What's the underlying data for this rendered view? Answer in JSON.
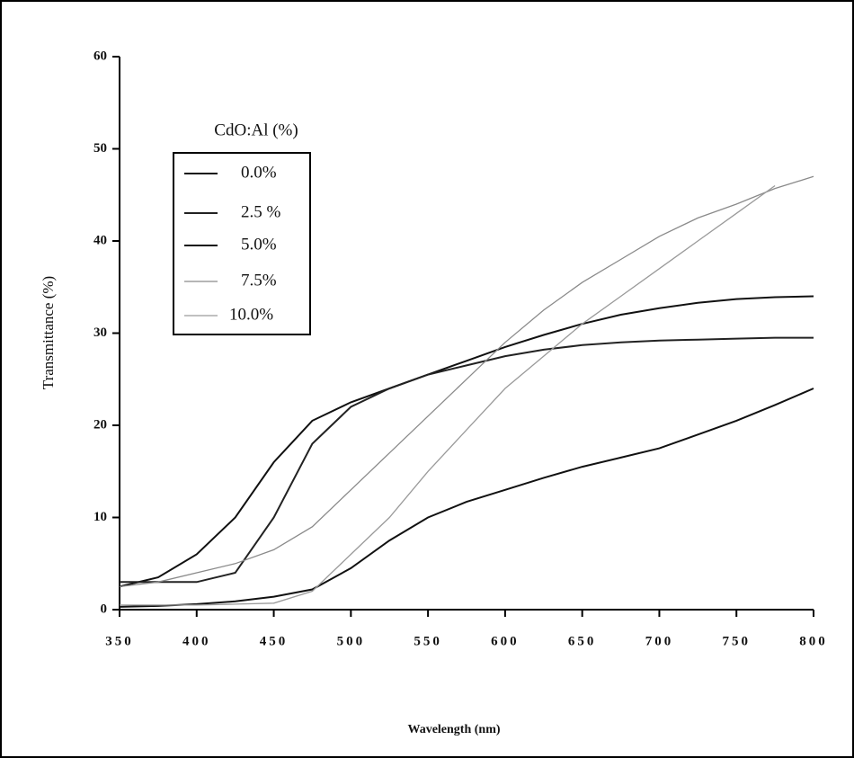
{
  "chart_data": {
    "type": "line",
    "x_label": "Wavelength (nm)",
    "y_label": "Transmittance (%)",
    "legend_title": "CdO:Al (%)",
    "x": [
      350,
      375,
      400,
      425,
      450,
      475,
      500,
      525,
      550,
      575,
      600,
      625,
      650,
      675,
      700,
      725,
      750,
      775,
      800
    ],
    "series": [
      {
        "name": "0.0%",
        "color": "#111111",
        "values": [
          2.5,
          3.5,
          6,
          10,
          16,
          20.5,
          22.5,
          24,
          25.5,
          27,
          28.5,
          29.8,
          31,
          32,
          32.7,
          33.3,
          33.7,
          33.9,
          34
        ]
      },
      {
        "name": "2.5 %",
        "color": "#222222",
        "values": [
          3,
          3,
          3,
          4,
          10,
          18,
          22,
          24,
          25.5,
          26.5,
          27.5,
          28.2,
          28.7,
          29,
          29.2,
          29.3,
          29.4,
          29.5,
          29.5
        ]
      },
      {
        "name": "5.0%",
        "color": "#111111",
        "values": [
          0.3,
          0.4,
          0.6,
          0.9,
          1.4,
          2.2,
          4.5,
          7.5,
          10,
          11.7,
          13,
          14.3,
          15.5,
          16.5,
          17.5,
          19,
          20.5,
          22.2,
          24
        ]
      },
      {
        "name": "7.5%",
        "color": "#8a8a8a",
        "values": [
          2.5,
          3,
          4,
          5,
          6.5,
          9,
          13,
          17,
          21,
          25,
          29,
          32.5,
          35.5,
          38,
          40.5,
          42.5,
          44,
          45.7,
          47
        ]
      },
      {
        "name": "10.0%",
        "color": "#9a9a9a",
        "values": [
          0.5,
          0.5,
          0.5,
          0.6,
          0.7,
          2,
          6,
          10,
          15,
          19.5,
          24,
          27.5,
          31,
          34,
          37,
          40,
          43,
          46,
          null
        ]
      }
    ],
    "xlim": [
      350,
      800
    ],
    "ylim": [
      0,
      60
    ],
    "xticks": [
      350,
      400,
      450,
      500,
      550,
      600,
      650,
      700,
      750,
      800
    ],
    "yticks": [
      0,
      10,
      20,
      30,
      40,
      50,
      60
    ]
  }
}
